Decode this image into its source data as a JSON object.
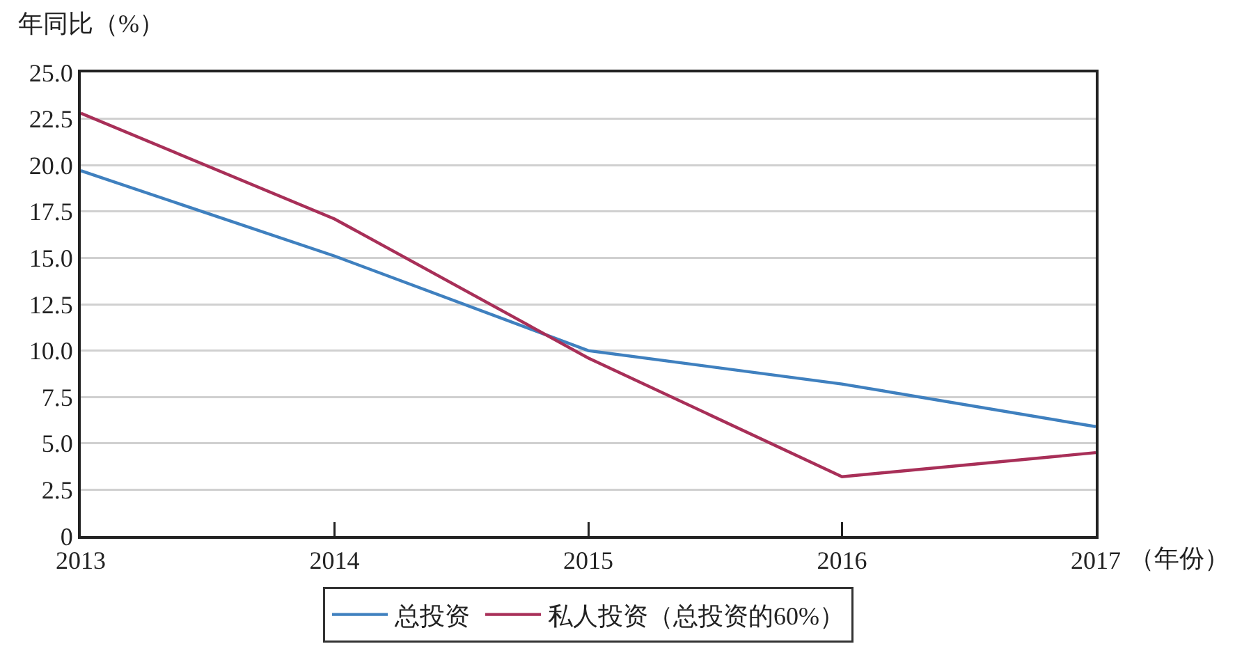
{
  "chart_data": {
    "type": "line",
    "ylabel": "年同比（%）",
    "xlabel": "（年份）",
    "x": [
      2013,
      2014,
      2015,
      2016,
      2017
    ],
    "series": [
      {
        "name": "总投资",
        "color": "#3f80bf",
        "values": [
          19.7,
          15.1,
          10.0,
          8.2,
          5.9
        ]
      },
      {
        "name": "私人投资（总投资的60%）",
        "color": "#a82f58",
        "values": [
          22.8,
          17.1,
          9.6,
          3.2,
          4.5
        ]
      }
    ],
    "xlim": [
      2013,
      2017
    ],
    "xticks": [
      2013,
      2014,
      2015,
      2016,
      2017
    ],
    "ylim": [
      0,
      25
    ],
    "yticks": [
      0,
      2.5,
      {
        "value": 5,
        "label": "5.0"
      },
      7.5,
      {
        "value": 10,
        "label": "10.0"
      },
      12.5,
      {
        "value": 15,
        "label": "15.0"
      },
      17.5,
      {
        "value": 20,
        "label": "20.0"
      },
      22.5,
      {
        "value": 25,
        "label": "25.0"
      }
    ],
    "grid": "y",
    "legend": "bottom",
    "marker": "none",
    "line_style": "solid"
  }
}
